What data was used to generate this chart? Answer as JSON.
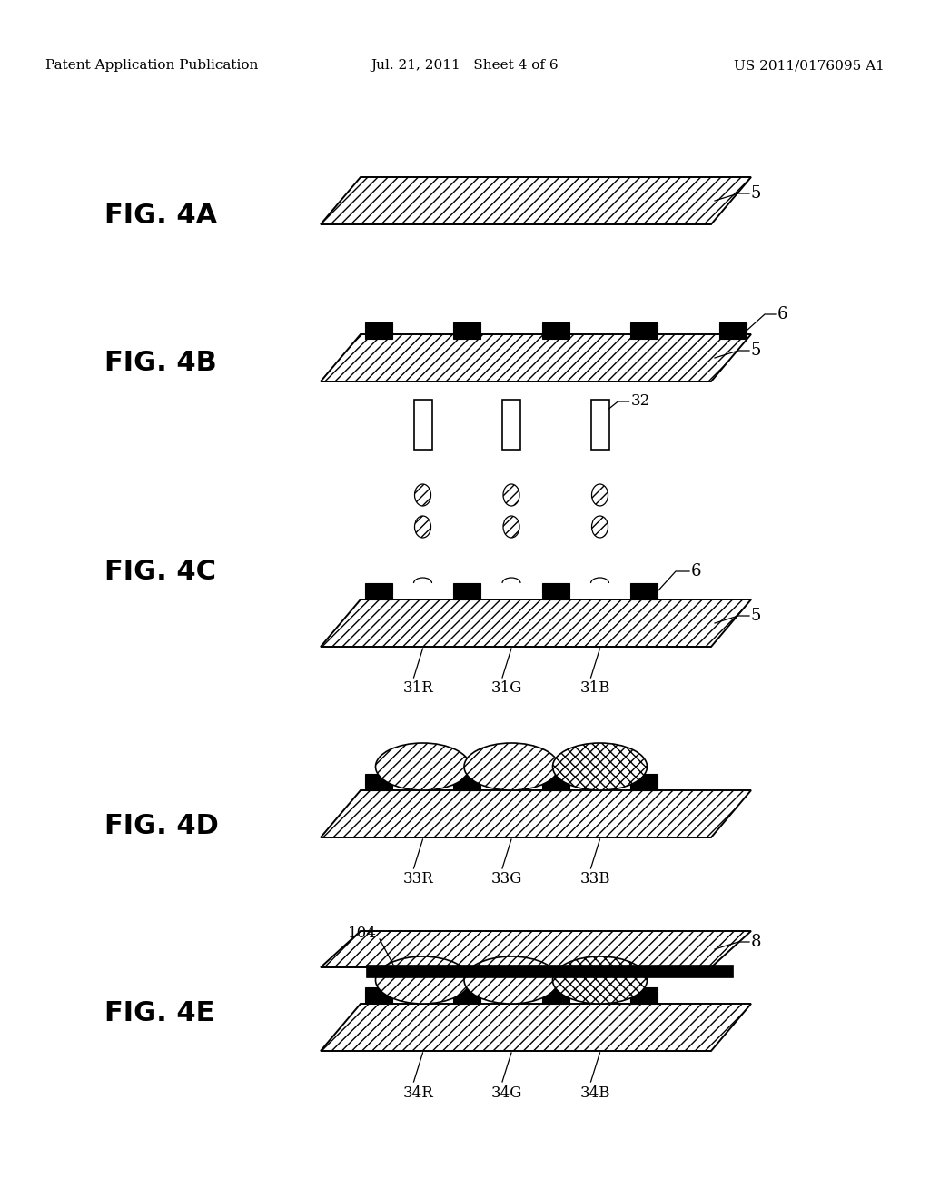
{
  "bg_color": "#ffffff",
  "header_left": "Patent Application Publication",
  "header_mid": "Jul. 21, 2011   Sheet 4 of 6",
  "header_right": "US 2011/0176095 A1",
  "line_color": "#000000"
}
